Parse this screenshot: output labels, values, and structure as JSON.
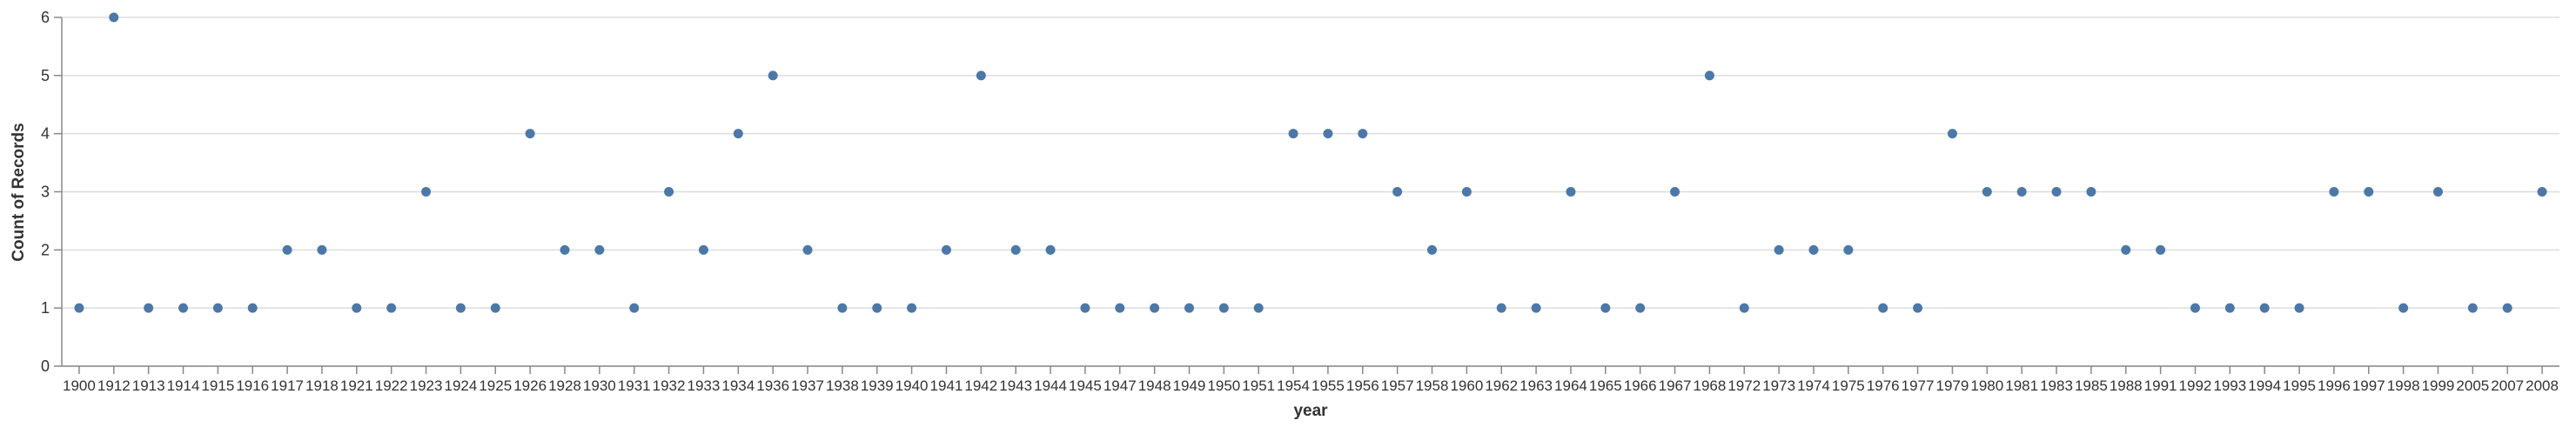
{
  "chart_data": {
    "type": "scatter",
    "title": "",
    "xlabel": "year",
    "ylabel": "Count of Records",
    "x_type": "ordinal",
    "ylim": [
      0,
      6
    ],
    "y_ticks": [
      0,
      1,
      2,
      3,
      4,
      5,
      6
    ],
    "grid": "horizontal",
    "legend": "none",
    "point_color": "#4c78a8",
    "x": [
      "1900",
      "1912",
      "1913",
      "1914",
      "1915",
      "1916",
      "1917",
      "1918",
      "1921",
      "1922",
      "1923",
      "1924",
      "1925",
      "1926",
      "1928",
      "1930",
      "1931",
      "1932",
      "1933",
      "1934",
      "1936",
      "1937",
      "1938",
      "1939",
      "1940",
      "1941",
      "1942",
      "1943",
      "1944",
      "1945",
      "1947",
      "1948",
      "1949",
      "1950",
      "1951",
      "1954",
      "1955",
      "1956",
      "1957",
      "1958",
      "1960",
      "1962",
      "1963",
      "1964",
      "1965",
      "1966",
      "1967",
      "1968",
      "1972",
      "1973",
      "1974",
      "1975",
      "1976",
      "1977",
      "1979",
      "1980",
      "1981",
      "1983",
      "1985",
      "1988",
      "1991",
      "1992",
      "1993",
      "1994",
      "1995",
      "1996",
      "1997",
      "1998",
      "1999",
      "2005",
      "2007",
      "2008"
    ],
    "y": [
      1,
      6,
      1,
      1,
      1,
      1,
      2,
      2,
      1,
      1,
      3,
      1,
      1,
      4,
      2,
      2,
      1,
      3,
      2,
      4,
      5,
      2,
      1,
      1,
      1,
      2,
      5,
      2,
      2,
      1,
      1,
      1,
      1,
      1,
      1,
      4,
      4,
      4,
      3,
      2,
      3,
      1,
      1,
      3,
      1,
      1,
      3,
      5,
      1,
      2,
      2,
      2,
      1,
      1,
      4,
      3,
      3,
      3,
      3,
      2,
      2,
      1,
      1,
      1,
      1,
      3,
      3,
      1,
      3,
      1,
      1,
      3
    ]
  }
}
